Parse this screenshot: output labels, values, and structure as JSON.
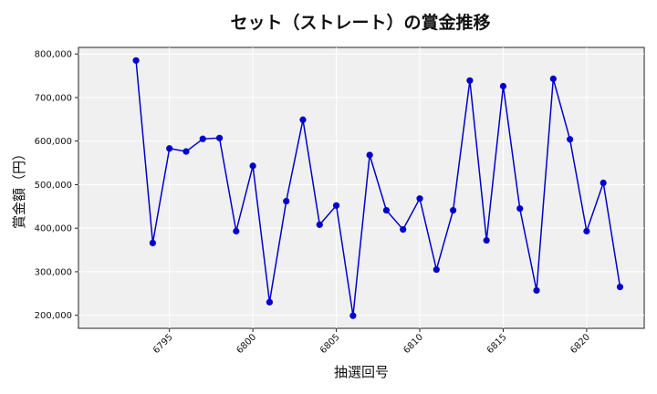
{
  "chart_data": {
    "type": "line",
    "title": "セット（ストレート）の賞金推移",
    "xlabel": "抽選回号",
    "ylabel": "賞金額（円）",
    "x": [
      6793,
      6794,
      6795,
      6796,
      6797,
      6798,
      6799,
      6800,
      6801,
      6802,
      6803,
      6804,
      6805,
      6806,
      6807,
      6808,
      6809,
      6810,
      6811,
      6812,
      6813,
      6814,
      6815,
      6816,
      6817,
      6818,
      6819,
      6820,
      6821,
      6822
    ],
    "series": [
      {
        "values": [
          785000,
          366000,
          583000,
          576000,
          605000,
          607000,
          393000,
          543000,
          230000,
          462000,
          649000,
          408000,
          452000,
          199000,
          568000,
          441000,
          397000,
          468000,
          305000,
          441000,
          739000,
          372000,
          726000,
          445000,
          257000,
          743000,
          604000,
          393000,
          504000,
          265000
        ],
        "color": "#0000cc"
      }
    ],
    "xticks": [
      6795,
      6800,
      6805,
      6810,
      6815,
      6820
    ],
    "yticks": [
      200000,
      300000,
      400000,
      500000,
      600000,
      700000,
      800000
    ],
    "xlim": [
      6789.55,
      6823.45
    ],
    "ylim": [
      170000,
      815000
    ],
    "grid": true,
    "background": "#f0f0f0"
  }
}
